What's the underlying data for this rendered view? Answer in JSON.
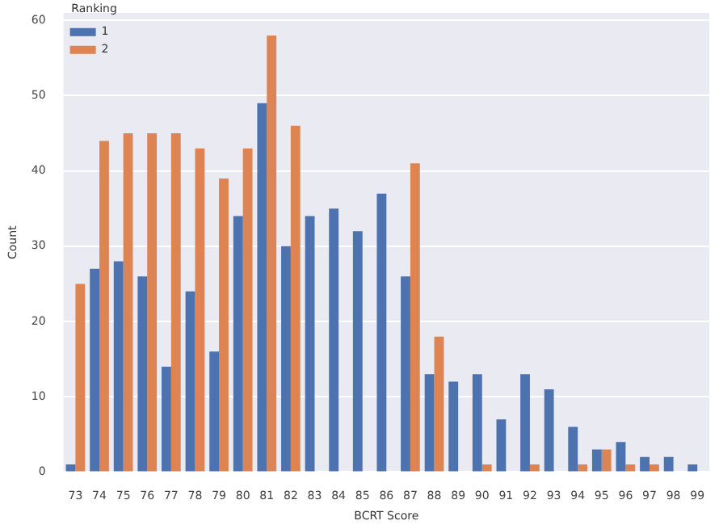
{
  "chart_data": {
    "type": "bar",
    "xlabel": "BCRT Score",
    "ylabel": "Count",
    "legend_title": "Ranking",
    "categories": [
      "73",
      "74",
      "75",
      "76",
      "77",
      "78",
      "79",
      "80",
      "81",
      "82",
      "83",
      "84",
      "85",
      "86",
      "87",
      "88",
      "89",
      "90",
      "91",
      "92",
      "93",
      "94",
      "95",
      "96",
      "97",
      "98",
      "99"
    ],
    "series": [
      {
        "name": "1",
        "color": "#4c72b0",
        "values": [
          1,
          27,
          28,
          26,
          14,
          24,
          16,
          34,
          49,
          30,
          34,
          35,
          32,
          37,
          26,
          13,
          12,
          13,
          7,
          13,
          11,
          6,
          3,
          4,
          2,
          2,
          1
        ]
      },
      {
        "name": "2",
        "color": "#dd8452",
        "values": [
          25,
          44,
          45,
          45,
          45,
          43,
          39,
          43,
          58,
          46,
          null,
          null,
          null,
          null,
          41,
          18,
          null,
          1,
          null,
          1,
          null,
          1,
          3,
          1,
          1,
          null,
          null
        ]
      }
    ],
    "ylim": [
      0,
      61
    ],
    "yticks": [
      0,
      10,
      20,
      30,
      40,
      50,
      60
    ],
    "grid": "y",
    "legend": "top left"
  }
}
